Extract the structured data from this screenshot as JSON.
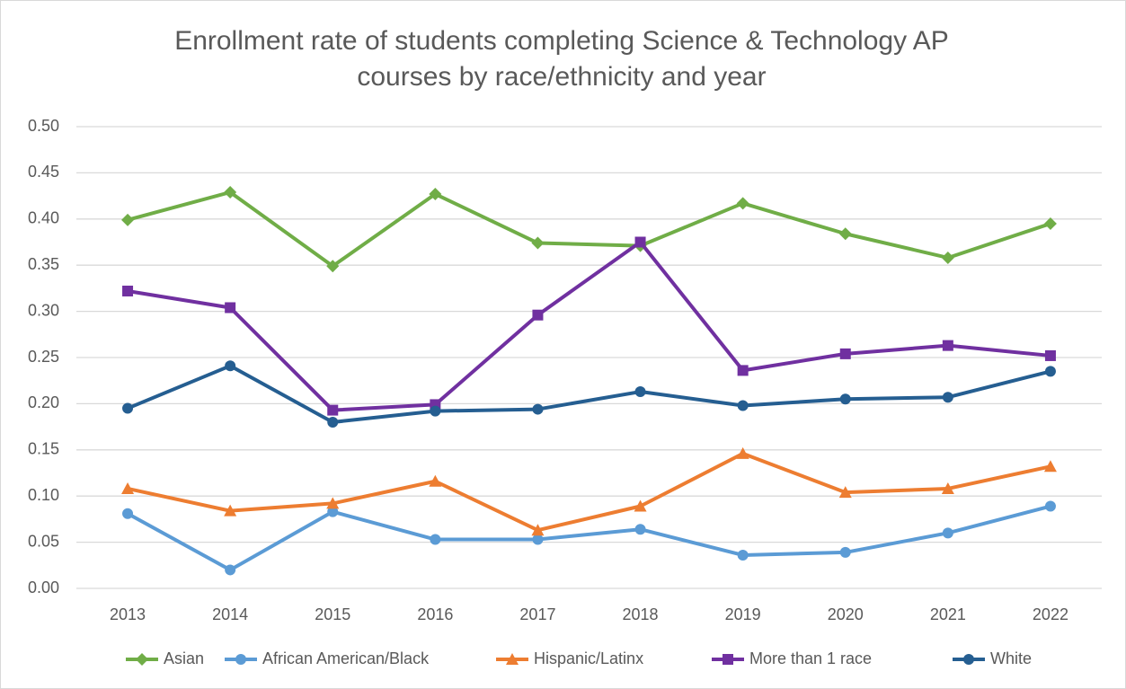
{
  "chart_data": {
    "type": "line",
    "title": "Enrollment rate of students completing Science & Technology AP courses by race/ethnicity and year",
    "categories": [
      "2013",
      "2014",
      "2015",
      "2016",
      "2017",
      "2018",
      "2019",
      "2020",
      "2021",
      "2022"
    ],
    "series": [
      {
        "name": "Asian",
        "color": "#70ad47",
        "marker": "diamond",
        "values": [
          0.399,
          0.429,
          0.349,
          0.427,
          0.374,
          0.371,
          0.417,
          0.384,
          0.358,
          0.395
        ]
      },
      {
        "name": "African American/Black",
        "color": "#5b9bd5",
        "marker": "circle",
        "values": [
          0.081,
          0.02,
          0.083,
          0.053,
          0.053,
          0.064,
          0.036,
          0.039,
          0.06,
          0.089
        ]
      },
      {
        "name": "Hispanic/Latinx",
        "color": "#ed7d31",
        "marker": "triangle",
        "values": [
          0.108,
          0.084,
          0.092,
          0.116,
          0.063,
          0.089,
          0.146,
          0.104,
          0.108,
          0.132
        ]
      },
      {
        "name": "More than 1 race",
        "color": "#7030a0",
        "marker": "square",
        "values": [
          0.322,
          0.304,
          0.193,
          0.199,
          0.296,
          0.375,
          0.236,
          0.254,
          0.263,
          0.252
        ]
      },
      {
        "name": "White",
        "color": "#255e91",
        "marker": "circle",
        "values": [
          0.195,
          0.241,
          0.18,
          0.192,
          0.194,
          0.213,
          0.198,
          0.205,
          0.207,
          0.235
        ]
      }
    ],
    "ylim": [
      0,
      0.5
    ],
    "yticks": [
      {
        "value": 0,
        "label": "0.00"
      },
      0.05,
      {
        "value": 0.1,
        "label": "0.10"
      },
      0.15,
      {
        "value": 0.2,
        "label": "0.20"
      },
      0.25,
      {
        "value": 0.3,
        "label": "0.30"
      },
      0.35,
      {
        "value": 0.4,
        "label": "0.40"
      },
      0.45,
      {
        "value": 0.5,
        "label": "0.50"
      }
    ],
    "grid": true,
    "legend": "bottom"
  }
}
